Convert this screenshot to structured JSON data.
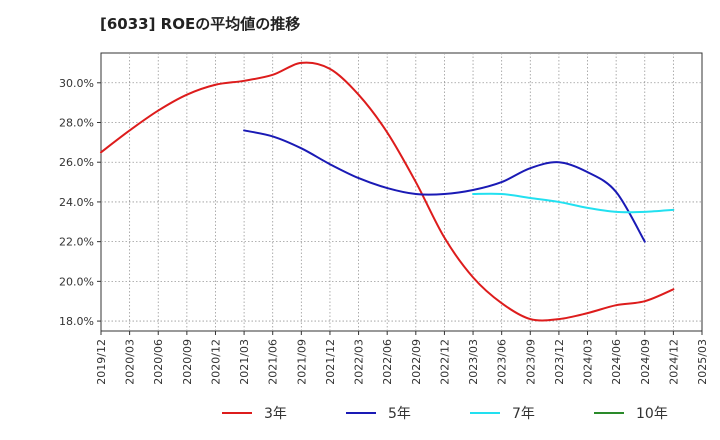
{
  "chart_data": {
    "type": "line",
    "title": "[6033]  ROEの平均値の推移",
    "xlabel": "",
    "ylabel": "",
    "ylim": [
      17.5,
      31.5
    ],
    "y_ticks": [
      18,
      20,
      22,
      24,
      26,
      28,
      30
    ],
    "y_tick_labels": [
      "18.0%",
      "20.0%",
      "22.0%",
      "24.0%",
      "26.0%",
      "28.0%",
      "30.0%"
    ],
    "x_tick_labels": [
      "2019/12",
      "2020/03",
      "2020/06",
      "2020/09",
      "2020/12",
      "2021/03",
      "2021/06",
      "2021/09",
      "2021/12",
      "2022/03",
      "2022/06",
      "2022/09",
      "2022/12",
      "2023/03",
      "2023/06",
      "2023/09",
      "2023/12",
      "2024/03",
      "2024/06",
      "2024/09",
      "2024/12",
      "2025/03"
    ],
    "grid": true,
    "legend_position": "bottom",
    "series": [
      {
        "name": "3年",
        "color": "#dd1c1c",
        "start_index": 0,
        "values": [
          26.5,
          27.6,
          28.6,
          29.4,
          29.9,
          30.1,
          30.4,
          31.0,
          30.7,
          29.4,
          27.5,
          25.0,
          22.2,
          20.2,
          18.9,
          18.1,
          18.1,
          18.4,
          18.8,
          19.0,
          19.6
        ]
      },
      {
        "name": "5年",
        "color": "#1a1ab5",
        "start_index": 5,
        "values": [
          27.6,
          27.3,
          26.7,
          25.9,
          25.2,
          24.7,
          24.4,
          24.4,
          24.6,
          25.0,
          25.7,
          26.0,
          25.5,
          24.5,
          22.0
        ]
      },
      {
        "name": "7年",
        "color": "#22e0f0",
        "start_index": 13,
        "values": [
          24.4,
          24.4,
          24.2,
          24.0,
          23.7,
          23.5,
          23.5,
          23.6
        ]
      },
      {
        "name": "10年",
        "color": "#2a8a2a",
        "start_index": 0,
        "values": []
      }
    ]
  }
}
